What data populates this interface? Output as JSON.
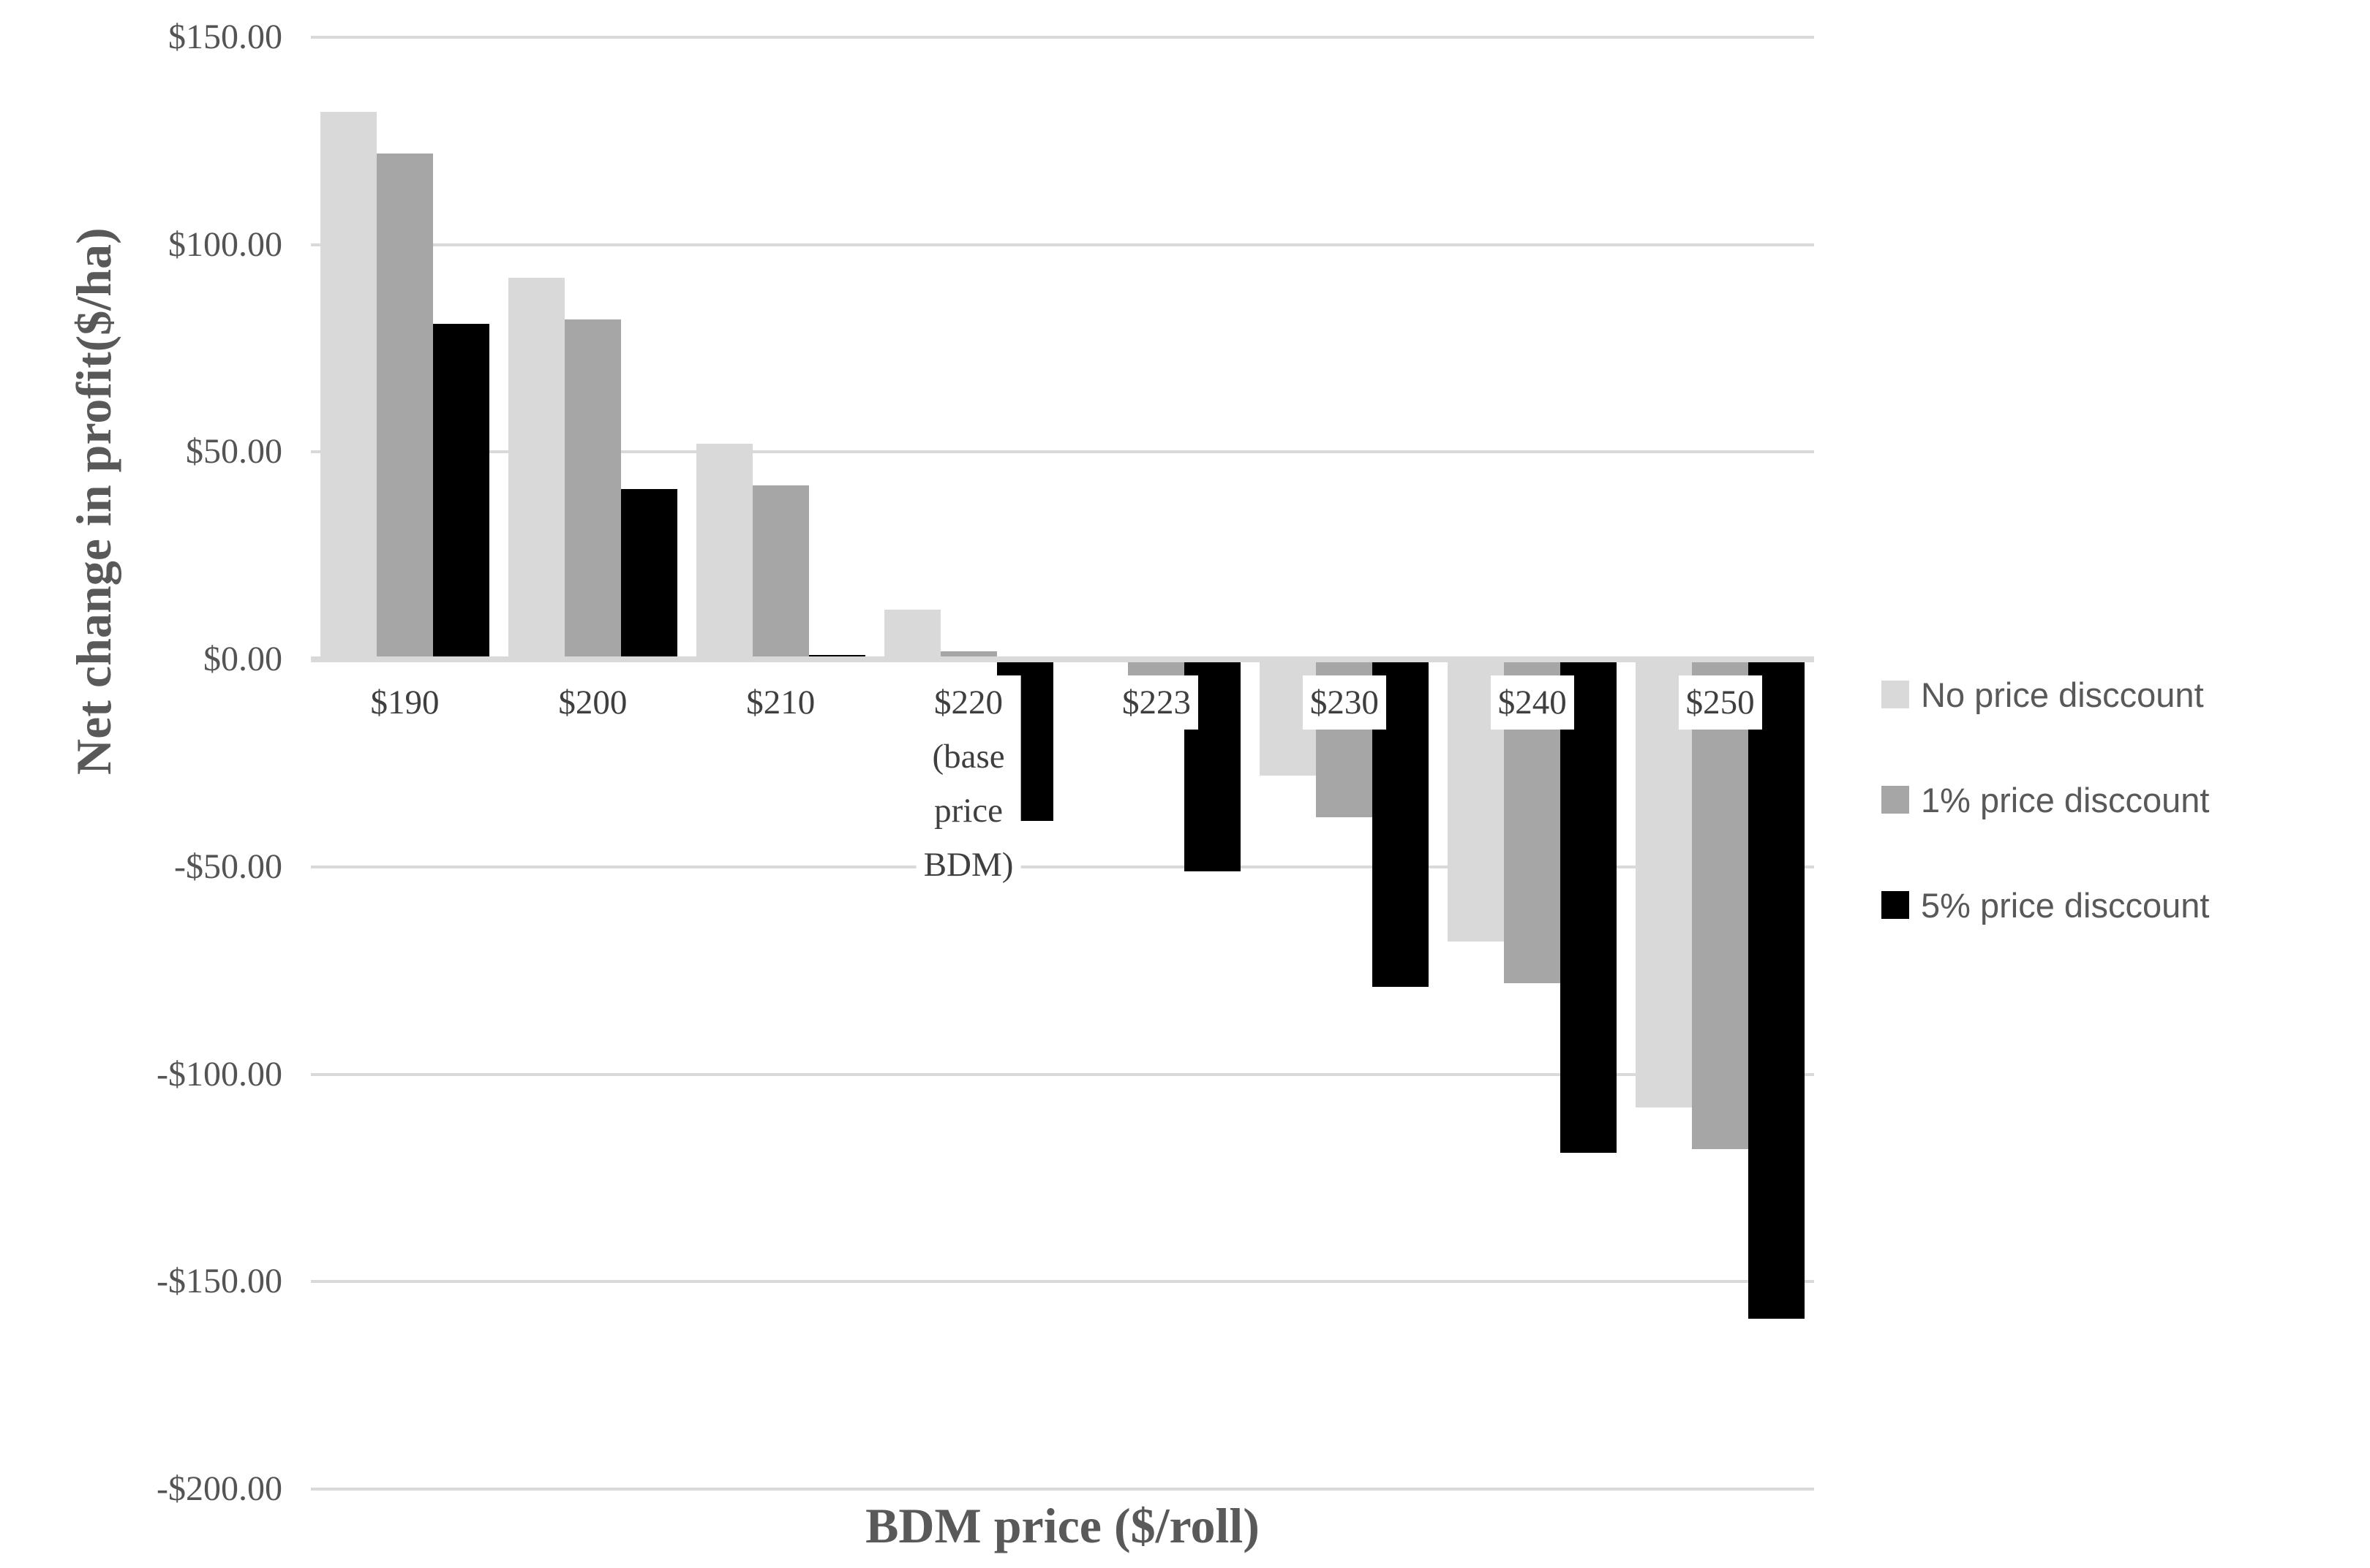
{
  "chart_data": {
    "type": "bar",
    "title": "",
    "xlabel": "BDM price ($/roll)",
    "ylabel": "Net change in profit($/ha)",
    "categories": [
      "$190",
      "$200",
      "$210",
      "$220 (base price BDM)",
      "$223",
      "$230",
      "$240",
      "$250"
    ],
    "category_label_lines": [
      [
        "$190"
      ],
      [
        "$200"
      ],
      [
        "$210"
      ],
      [
        "$220",
        "(base",
        "price",
        "BDM)"
      ],
      [
        "$223"
      ],
      [
        "$230"
      ],
      [
        "$240"
      ],
      [
        "$250"
      ]
    ],
    "series": [
      {
        "name": "No price disccount",
        "color": "#d9d9d9",
        "values": [
          132,
          92,
          52,
          12,
          0,
          -28,
          -68,
          -108
        ]
      },
      {
        "name": "1% price disccount",
        "color": "#a6a6a6",
        "values": [
          122,
          82,
          42,
          2,
          -10,
          -38,
          -78,
          -118
        ]
      },
      {
        "name": "5% price disccount",
        "color": "#000000",
        "values": [
          81,
          41,
          1,
          -39,
          -51,
          -79,
          -119,
          -159
        ]
      }
    ],
    "y_axis": {
      "min": -200,
      "max": 150,
      "step": 50,
      "tick_labels": [
        "$150.00",
        "$100.00",
        "$50.00",
        "$0.00",
        "-$50.00",
        "-$100.00",
        "-$150.00",
        "-$200.00"
      ]
    },
    "grid": true,
    "legend_position": "right",
    "styles": {
      "grid_color": "#d9d9d9",
      "zero_axis_color": "#d9d9d9",
      "axis_text_color": "#545454",
      "title_text_color": "#595959",
      "category_text_color": "#3f3f3f",
      "background": "#ffffff"
    }
  }
}
